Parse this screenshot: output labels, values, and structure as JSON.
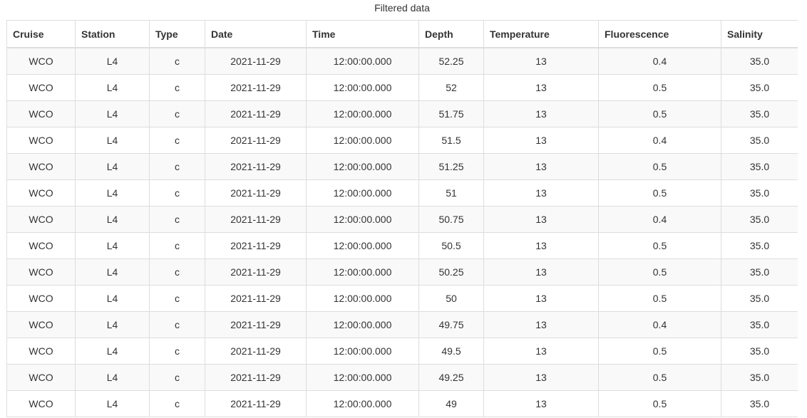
{
  "caption": "Filtered data",
  "columns": [
    "Cruise",
    "Station",
    "Type",
    "Date",
    "Time",
    "Depth",
    "Temperature",
    "Fluorescence",
    "Salinity"
  ],
  "rows": [
    [
      "WCO",
      "L4",
      "c",
      "2021-11-29",
      "12:00:00.000",
      "52.25",
      "13",
      "0.4",
      "35.0"
    ],
    [
      "WCO",
      "L4",
      "c",
      "2021-11-29",
      "12:00:00.000",
      "52",
      "13",
      "0.5",
      "35.0"
    ],
    [
      "WCO",
      "L4",
      "c",
      "2021-11-29",
      "12:00:00.000",
      "51.75",
      "13",
      "0.5",
      "35.0"
    ],
    [
      "WCO",
      "L4",
      "c",
      "2021-11-29",
      "12:00:00.000",
      "51.5",
      "13",
      "0.4",
      "35.0"
    ],
    [
      "WCO",
      "L4",
      "c",
      "2021-11-29",
      "12:00:00.000",
      "51.25",
      "13",
      "0.5",
      "35.0"
    ],
    [
      "WCO",
      "L4",
      "c",
      "2021-11-29",
      "12:00:00.000",
      "51",
      "13",
      "0.5",
      "35.0"
    ],
    [
      "WCO",
      "L4",
      "c",
      "2021-11-29",
      "12:00:00.000",
      "50.75",
      "13",
      "0.4",
      "35.0"
    ],
    [
      "WCO",
      "L4",
      "c",
      "2021-11-29",
      "12:00:00.000",
      "50.5",
      "13",
      "0.5",
      "35.0"
    ],
    [
      "WCO",
      "L4",
      "c",
      "2021-11-29",
      "12:00:00.000",
      "50.25",
      "13",
      "0.5",
      "35.0"
    ],
    [
      "WCO",
      "L4",
      "c",
      "2021-11-29",
      "12:00:00.000",
      "50",
      "13",
      "0.5",
      "35.0"
    ],
    [
      "WCO",
      "L4",
      "c",
      "2021-11-29",
      "12:00:00.000",
      "49.75",
      "13",
      "0.4",
      "35.0"
    ],
    [
      "WCO",
      "L4",
      "c",
      "2021-11-29",
      "12:00:00.000",
      "49.5",
      "13",
      "0.5",
      "35.0"
    ],
    [
      "WCO",
      "L4",
      "c",
      "2021-11-29",
      "12:00:00.000",
      "49.25",
      "13",
      "0.5",
      "35.0"
    ],
    [
      "WCO",
      "L4",
      "c",
      "2021-11-29",
      "12:00:00.000",
      "49",
      "13",
      "0.5",
      "35.0"
    ]
  ]
}
